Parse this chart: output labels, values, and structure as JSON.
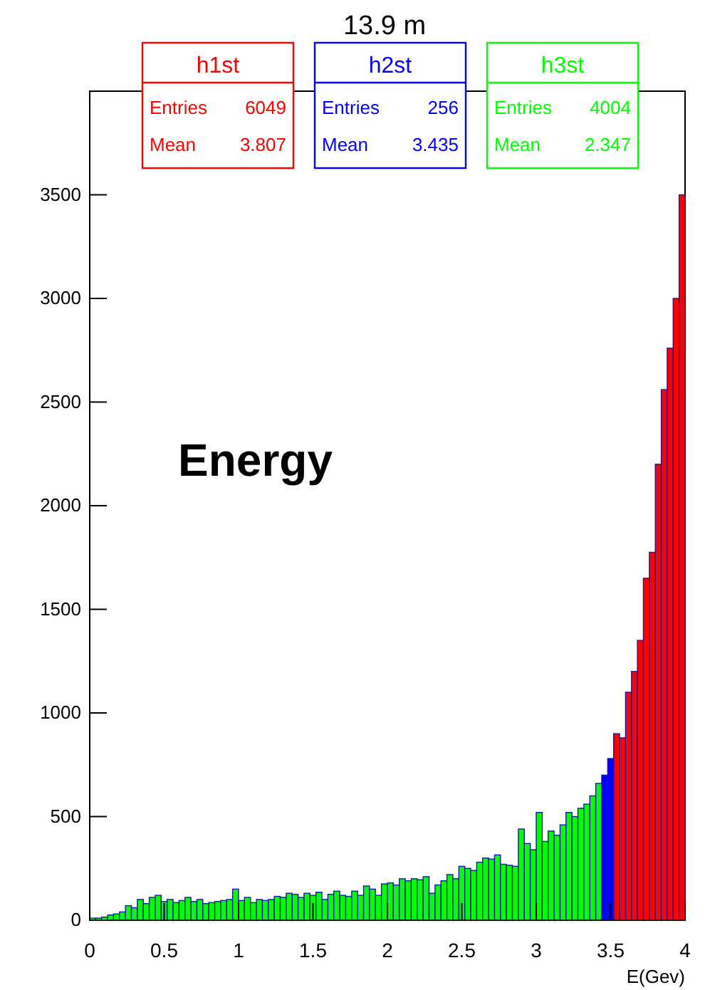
{
  "chart_data": {
    "type": "histogram",
    "title": "13.9 m",
    "xlabel": "E(Gev)",
    "annotations": [
      "Energy",
      "Entries",
      "6049",
      "Mean",
      "3.807",
      "Entries",
      "256",
      "Mean",
      "3.435",
      "Entries",
      "4004",
      "Mean",
      "2.347"
    ],
    "bins": [
      0,
      0.04,
      0.08,
      0.12,
      0.16,
      0.2,
      0.24,
      0.28,
      0.32,
      0.36,
      0.4,
      0.44,
      0.48,
      0.52,
      0.56,
      0.6,
      0.64,
      0.68,
      0.72,
      0.76,
      0.8,
      0.84,
      0.88,
      0.92,
      0.96,
      1,
      1.04,
      1.08,
      1.12,
      1.16,
      1.2,
      1.24,
      1.28,
      1.32,
      1.36,
      1.4,
      1.44,
      1.48,
      1.52,
      1.56,
      1.6,
      1.64,
      1.68,
      1.72,
      1.76,
      1.8,
      1.84,
      1.88,
      1.92,
      1.96,
      2,
      2.04,
      2.08,
      2.12,
      2.16,
      2.2,
      2.24,
      2.28,
      2.32,
      2.36,
      2.4,
      2.44,
      2.48,
      2.52,
      2.56,
      2.6,
      2.64,
      2.68,
      2.72,
      2.76,
      2.8,
      2.84,
      2.88,
      2.92,
      2.96,
      3,
      3.04,
      3.08,
      3.12,
      3.16,
      3.2,
      3.24,
      3.28,
      3.32,
      3.36,
      3.4,
      3.44,
      3.48,
      3.52,
      3.56,
      3.6,
      3.64,
      3.68,
      3.72,
      3.76,
      3.8,
      3.84,
      3.88,
      3.92,
      3.96,
      4
    ],
    "series": [
      {
        "name": "h1st",
        "color": "#ff0000",
        "values": [
          null,
          null,
          null,
          null,
          null,
          null,
          null,
          null,
          null,
          null,
          null,
          null,
          null,
          null,
          null,
          null,
          null,
          null,
          null,
          null,
          null,
          null,
          null,
          null,
          null,
          null,
          null,
          null,
          null,
          null,
          null,
          null,
          null,
          null,
          null,
          null,
          null,
          null,
          null,
          null,
          null,
          null,
          null,
          null,
          null,
          null,
          null,
          null,
          null,
          null,
          null,
          null,
          null,
          null,
          null,
          null,
          null,
          null,
          null,
          null,
          null,
          null,
          null,
          null,
          null,
          null,
          null,
          null,
          null,
          null,
          null,
          null,
          null,
          null,
          null,
          null,
          null,
          null,
          null,
          null,
          null,
          null,
          null,
          null,
          null,
          null,
          null,
          null,
          900,
          880,
          1100,
          1200,
          1350,
          1650,
          1775,
          2200,
          2560,
          2760,
          3000,
          3500
        ]
      },
      {
        "name": "h2st",
        "color": "#0000ff",
        "values": [
          null,
          null,
          null,
          null,
          null,
          null,
          null,
          null,
          null,
          null,
          null,
          null,
          null,
          null,
          null,
          null,
          null,
          null,
          null,
          null,
          null,
          null,
          null,
          null,
          null,
          null,
          null,
          null,
          null,
          null,
          null,
          null,
          null,
          null,
          null,
          null,
          null,
          null,
          null,
          null,
          null,
          null,
          null,
          null,
          null,
          null,
          null,
          null,
          null,
          null,
          null,
          null,
          null,
          null,
          null,
          null,
          null,
          null,
          null,
          null,
          null,
          null,
          null,
          null,
          null,
          null,
          null,
          null,
          null,
          null,
          null,
          null,
          null,
          null,
          null,
          null,
          null,
          null,
          null,
          null,
          null,
          null,
          null,
          null,
          null,
          null,
          700,
          780,
          null,
          null,
          null,
          null,
          null,
          null,
          null,
          null,
          null,
          null,
          null,
          null
        ]
      },
      {
        "name": "h3st",
        "color": "#00ff00",
        "values": [
          10,
          10,
          15,
          25,
          30,
          40,
          70,
          60,
          100,
          80,
          110,
          120,
          90,
          100,
          85,
          95,
          110,
          90,
          100,
          80,
          85,
          90,
          95,
          100,
          150,
          95,
          110,
          85,
          100,
          95,
          100,
          115,
          110,
          130,
          125,
          110,
          130,
          120,
          135,
          100,
          125,
          140,
          120,
          115,
          140,
          120,
          165,
          150,
          120,
          175,
          180,
          170,
          200,
          190,
          200,
          195,
          210,
          130,
          170,
          190,
          220,
          200,
          260,
          250,
          240,
          280,
          300,
          295,
          315,
          270,
          265,
          260,
          440,
          370,
          340,
          520,
          380,
          430,
          410,
          460,
          520,
          500,
          540,
          560,
          600,
          660,
          null,
          null,
          null,
          null,
          null,
          null,
          null,
          null,
          null,
          null,
          null,
          null,
          null,
          null
        ]
      }
    ],
    "xlim": [
      0,
      4
    ],
    "xticks": [
      0,
      0.5,
      1,
      1.5,
      2,
      2.5,
      3,
      3.5,
      4
    ],
    "ylim": [
      0,
      4000
    ],
    "yticks": [
      0,
      500,
      1000,
      1500,
      2000,
      2500,
      3000,
      3500
    ],
    "legend": "top"
  }
}
